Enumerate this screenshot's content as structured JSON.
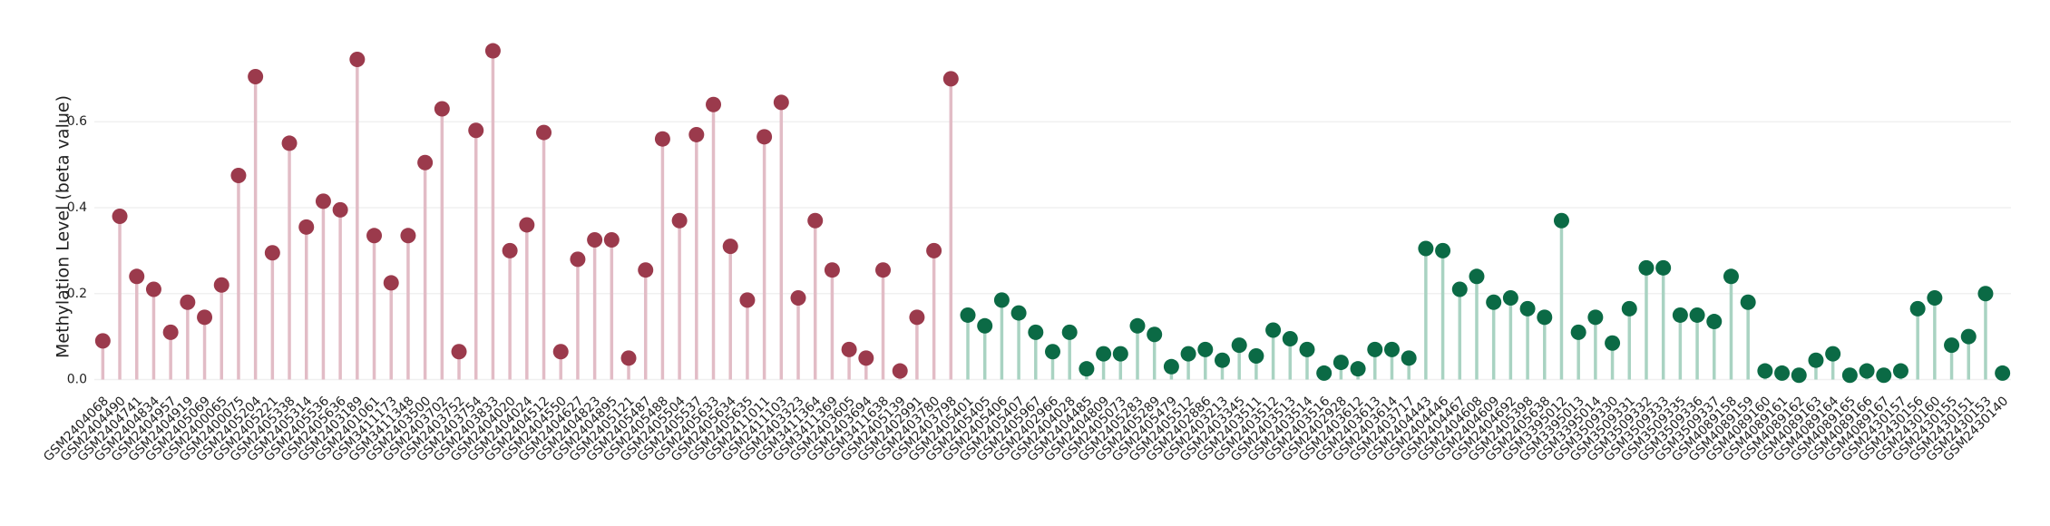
{
  "chart_data": {
    "type": "lollipop",
    "y_label": "Methylation Level (beta value)",
    "categories": [
      "GSM2404068",
      "GSM2404490",
      "GSM2404741",
      "GSM2404834",
      "GSM2404957",
      "GSM2404919",
      "GSM2405069",
      "GSM2400065",
      "GSM2400075",
      "GSM2405204",
      "GSM2405221",
      "GSM2405338",
      "GSM2405314",
      "GSM2405536",
      "GSM2405636",
      "GSM2403189",
      "GSM2401061",
      "GSM3411173",
      "GSM3411348",
      "GSM2403500",
      "GSM2403702",
      "GSM2403752",
      "GSM2403754",
      "GSM2403833",
      "GSM2404020",
      "GSM2404024",
      "GSM2404512",
      "GSM2404550",
      "GSM2404627",
      "GSM2404823",
      "GSM2404895",
      "GSM2405121",
      "GSM2405487",
      "GSM2405488",
      "GSM2405504",
      "GSM2405537",
      "GSM2405633",
      "GSM2405634",
      "GSM2405635",
      "GSM2411011",
      "GSM2411103",
      "GSM2403323",
      "GSM3411364",
      "GSM3411369",
      "GSM2403605",
      "GSM2403694",
      "GSM3411638",
      "GSM2405139",
      "GSM2402991",
      "GSM2403780",
      "GSM2403798",
      "GSM2405401",
      "GSM2405405",
      "GSM2405406",
      "GSM2405407",
      "GSM2405967",
      "GSM2402966",
      "GSM2404028",
      "GSM2404485",
      "GSM2404809",
      "GSM2405073",
      "GSM2405283",
      "GSM2405289",
      "GSM2405479",
      "GSM2405512",
      "GSM2402886",
      "GSM2403213",
      "GSM2403345",
      "GSM2403511",
      "GSM2403512",
      "GSM2403513",
      "GSM2403514",
      "GSM2403516",
      "GSM2402928",
      "GSM2403612",
      "GSM2403613",
      "GSM2403614",
      "GSM2403717",
      "GSM2404443",
      "GSM2404446",
      "GSM2404467",
      "GSM2404608",
      "GSM2404609",
      "GSM2404692",
      "GSM2405398",
      "GSM2405638",
      "GSM3395012",
      "GSM3395013",
      "GSM3395014",
      "GSM3509330",
      "GSM3509331",
      "GSM3509332",
      "GSM3509333",
      "GSM3509335",
      "GSM3509336",
      "GSM3509337",
      "GSM4089158",
      "GSM4089159",
      "GSM4089160",
      "GSM4089161",
      "GSM4089162",
      "GSM4089163",
      "GSM4089164",
      "GSM4089165",
      "GSM4089166",
      "GSM4089167",
      "GSM2430157",
      "GSM2430156",
      "GSM2430160",
      "GSM2430155",
      "GSM2430151",
      "GSM2430153",
      "GSM2430140"
    ],
    "series": [
      {
        "color": "#9b3a4c",
        "stem_color": "#e2bcc6",
        "values": [
          0.09,
          0.38,
          0.24,
          0.21,
          0.11,
          0.18,
          0.145,
          0.22,
          0.475,
          0.705,
          0.295,
          0.55,
          0.355,
          0.415,
          0.395,
          0.745,
          0.335,
          0.225,
          0.335,
          0.505,
          0.63,
          0.065,
          0.58,
          0.765,
          0.3,
          0.36,
          0.575,
          0.065,
          0.28,
          0.325,
          0.325,
          0.05,
          0.255,
          0.56,
          0.37,
          0.57,
          0.64,
          0.31,
          0.185,
          0.565,
          0.645,
          0.19,
          0.37,
          0.255,
          0.07,
          0.05,
          0.255,
          0.02,
          0.145,
          0.3,
          0.7,
          null,
          null,
          null,
          null,
          null,
          null,
          null,
          null,
          null,
          null,
          null,
          null,
          null,
          null,
          null,
          null,
          null,
          null,
          null,
          null,
          null,
          null,
          null,
          null,
          null,
          null,
          null,
          null,
          null,
          null,
          null,
          null,
          null,
          null,
          null,
          null,
          null,
          null,
          null,
          null,
          null,
          null,
          null,
          null,
          null,
          null,
          null,
          null,
          null,
          null,
          null,
          null,
          null,
          null,
          null,
          null,
          null,
          null,
          null,
          null,
          null,
          null
        ]
      },
      {
        "color": "#0b6a45",
        "stem_color": "#a9d3c2",
        "values": [
          null,
          null,
          null,
          null,
          null,
          null,
          null,
          null,
          null,
          null,
          null,
          null,
          null,
          null,
          null,
          null,
          null,
          null,
          null,
          null,
          null,
          null,
          null,
          null,
          null,
          null,
          null,
          null,
          null,
          null,
          null,
          null,
          null,
          null,
          null,
          null,
          null,
          null,
          null,
          null,
          null,
          null,
          null,
          null,
          null,
          null,
          null,
          null,
          null,
          null,
          null,
          0.15,
          0.125,
          0.185,
          0.155,
          0.11,
          0.065,
          0.11,
          0.025,
          0.06,
          0.06,
          0.125,
          0.105,
          0.03,
          0.06,
          0.07,
          0.045,
          0.08,
          0.055,
          0.115,
          0.095,
          0.07,
          0.015,
          0.04,
          0.025,
          0.07,
          0.07,
          0.05,
          0.305,
          0.3,
          0.21,
          0.24,
          0.18,
          0.19,
          0.165,
          0.145,
          0.37,
          0.11,
          0.145,
          0.085,
          0.165,
          0.26,
          0.26,
          0.15,
          0.15,
          0.135,
          0.24,
          0.18,
          0.02,
          0.015,
          0.01,
          0.045,
          0.06,
          0.01,
          0.02,
          0.01,
          0.02,
          0.165,
          0.19,
          0.08,
          0.1,
          0.2,
          0.015
        ]
      }
    ],
    "ylim": [
      -0.02,
      0.82
    ],
    "yticks": [
      {
        "value": 0,
        "label": "0.0"
      },
      {
        "value": 0.2,
        "label": "0.2"
      },
      {
        "value": 0.4,
        "label": "0.4"
      },
      {
        "value": 0.6,
        "label": "0.6"
      }
    ],
    "grid": true
  }
}
